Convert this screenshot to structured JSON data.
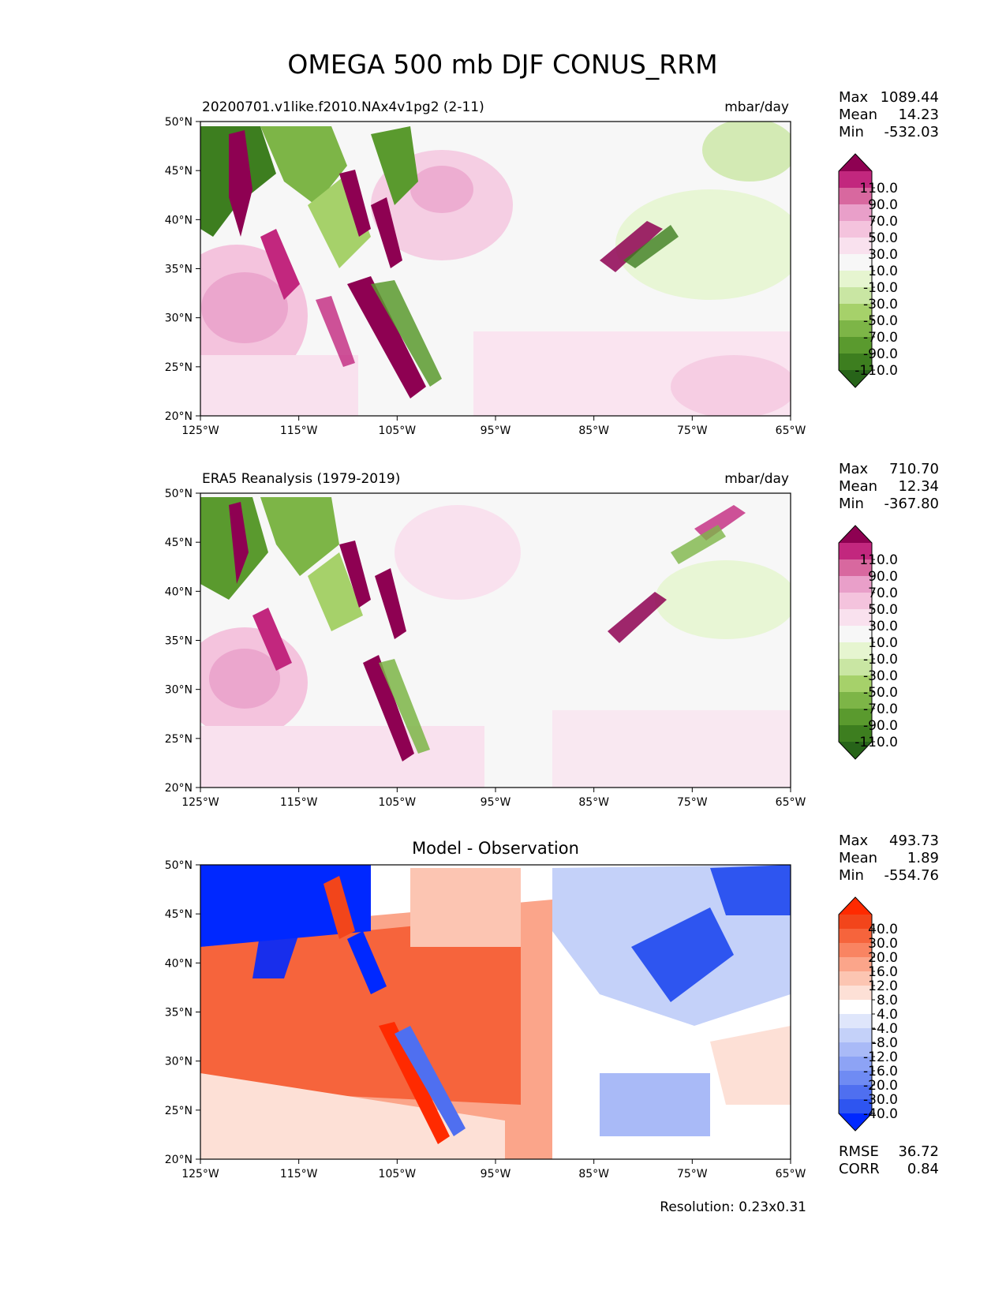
{
  "figure": {
    "title": "OMEGA 500 mb DJF CONUS_RRM",
    "resolution_note": "Resolution: 0.23x0.31"
  },
  "colors": {
    "piyg_levels": [
      "#276419",
      "#3d7e1f",
      "#5a9a2e",
      "#7db547",
      "#a6d16a",
      "#c9e6a3",
      "#e6f5d0",
      "#f7f7f7",
      "#f9e1ee",
      "#f4c3dd",
      "#e99fc9",
      "#d8689f",
      "#c2277e",
      "#8e0152"
    ],
    "bwr_levels": [
      "#0028ff",
      "#2e55f0",
      "#4f6ff0",
      "#6f8bf3",
      "#8da3f5",
      "#a9baf7",
      "#c4d1f9",
      "#dfe6fb",
      "#ffffff",
      "#fde0d6",
      "#fcc5b2",
      "#fba58a",
      "#f98462",
      "#f6643c",
      "#f2451b",
      "#ff2a00"
    ]
  },
  "chart_data": [
    {
      "type": "heatmap",
      "id": "model",
      "title_left": "20200701.v1like.f2010.NAx4v1pg2 (2-11)",
      "title_right": "mbar/day",
      "xlim": [
        -125,
        -65
      ],
      "ylim": [
        20,
        50
      ],
      "xticks": [
        "125°W",
        "115°W",
        "105°W",
        "95°W",
        "85°W",
        "75°W",
        "65°W"
      ],
      "yticks": [
        "50°N",
        "45°N",
        "40°N",
        "35°N",
        "30°N",
        "25°N",
        "20°N"
      ],
      "colorbar_levels": [
        "110.0",
        "90.0",
        "70.0",
        "50.0",
        "30.0",
        "10.0",
        "-10.0",
        "-30.0",
        "-50.0",
        "-70.0",
        "-90.0",
        "-110.0"
      ],
      "colormap": "piyg",
      "stats": [
        {
          "label": "Max",
          "value": "1089.44"
        },
        {
          "label": "Mean",
          "value": "14.23"
        },
        {
          "label": "Min",
          "value": "-532.03"
        }
      ]
    },
    {
      "type": "heatmap",
      "id": "obs",
      "title_left": "ERA5 Reanalysis (1979-2019)",
      "title_right": "mbar/day",
      "xlim": [
        -125,
        -65
      ],
      "ylim": [
        20,
        50
      ],
      "xticks": [
        "125°W",
        "115°W",
        "105°W",
        "95°W",
        "85°W",
        "75°W",
        "65°W"
      ],
      "yticks": [
        "50°N",
        "45°N",
        "40°N",
        "35°N",
        "30°N",
        "25°N",
        "20°N"
      ],
      "colorbar_levels": [
        "110.0",
        "90.0",
        "70.0",
        "50.0",
        "30.0",
        "10.0",
        "-10.0",
        "-30.0",
        "-50.0",
        "-70.0",
        "-90.0",
        "-110.0"
      ],
      "colormap": "piyg",
      "stats": [
        {
          "label": "Max",
          "value": "710.70"
        },
        {
          "label": "Mean",
          "value": "12.34"
        },
        {
          "label": "Min",
          "value": "-367.80"
        }
      ]
    },
    {
      "type": "heatmap",
      "id": "diff",
      "title_center": "Model - Observation",
      "xlim": [
        -125,
        -65
      ],
      "ylim": [
        20,
        50
      ],
      "xticks": [
        "125°W",
        "115°W",
        "105°W",
        "95°W",
        "85°W",
        "75°W",
        "65°W"
      ],
      "yticks": [
        "50°N",
        "45°N",
        "40°N",
        "35°N",
        "30°N",
        "25°N",
        "20°N"
      ],
      "colorbar_levels": [
        "40.0",
        "30.0",
        "20.0",
        "16.0",
        "12.0",
        "8.0",
        "4.0",
        "-4.0",
        "-8.0",
        "-12.0",
        "-16.0",
        "-20.0",
        "-30.0",
        "-40.0"
      ],
      "colormap": "bwr",
      "stats": [
        {
          "label": "Max",
          "value": "493.73"
        },
        {
          "label": "Mean",
          "value": "1.89"
        },
        {
          "label": "Min",
          "value": "-554.76"
        }
      ],
      "metrics": [
        {
          "label": "RMSE",
          "value": "36.72"
        },
        {
          "label": "CORR",
          "value": "0.84"
        }
      ]
    }
  ]
}
